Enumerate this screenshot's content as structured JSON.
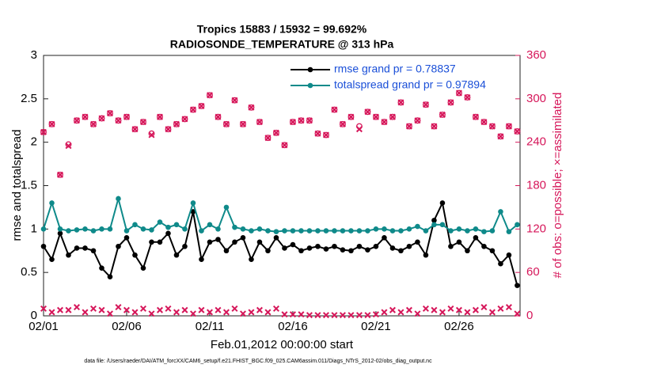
{
  "chart_data": {
    "type": "line",
    "title": "Tropics 15883 / 15932 = 99.692%",
    "subtitle": "RADIOSONDE_TEMPERATURE @ 313 hPa",
    "xlabel": "Feb.01,2012 00:00:00 start",
    "ylabel": "rmse and totalspread",
    "y2label": "# of obs: o=possible; ×=assimilated",
    "footnote": "data file: /Users/raeder/DAI/ATM_forcXX/CAM6_setup/f.e21.FHIST_BGC.f09_025.CAM6assim.011/Diags_NTrS_2012-02/obs_diag_output.nc",
    "x": [
      0,
      0.5,
      1,
      1.5,
      2,
      2.5,
      3,
      3.5,
      4,
      4.5,
      5,
      5.5,
      6,
      6.5,
      7,
      7.5,
      8,
      8.5,
      9,
      9.5,
      10,
      10.5,
      11,
      11.5,
      12,
      12.5,
      13,
      13.5,
      14,
      14.5,
      15,
      15.5,
      16,
      16.5,
      17,
      17.5,
      18,
      18.5,
      19,
      19.5,
      20,
      20.5,
      21,
      21.5,
      22,
      22.5,
      23,
      23.5,
      24,
      24.5,
      25,
      25.5,
      26,
      26.5,
      27,
      27.5,
      28,
      28.5
    ],
    "xlim": [
      0,
      28.67
    ],
    "xticks": [
      {
        "value": 0,
        "label": "02/01"
      },
      {
        "value": 5,
        "label": "02/06"
      },
      {
        "value": 10,
        "label": "02/11"
      },
      {
        "value": 15,
        "label": "02/16"
      },
      {
        "value": 20,
        "label": "02/21"
      },
      {
        "value": 25,
        "label": "02/26"
      }
    ],
    "ylim": [
      0,
      3
    ],
    "yticks": [
      0,
      0.5,
      1,
      1.5,
      2,
      2.5,
      3
    ],
    "y2lim": [
      0,
      360
    ],
    "y2ticks": [
      0,
      60,
      120,
      180,
      240,
      300,
      360
    ],
    "legend": "upper right",
    "series": [
      {
        "name": "rmse grand pr = 0.78837",
        "color": "#000000",
        "marker": "dot",
        "values": [
          0.8,
          0.65,
          0.95,
          0.7,
          0.78,
          0.78,
          0.75,
          0.55,
          0.45,
          0.8,
          0.9,
          0.7,
          0.55,
          0.85,
          0.85,
          0.95,
          0.7,
          0.8,
          1.2,
          0.65,
          0.85,
          0.88,
          0.75,
          0.85,
          0.9,
          0.65,
          0.85,
          0.75,
          0.9,
          0.78,
          0.82,
          0.75,
          0.78,
          0.8,
          0.77,
          0.8,
          0.76,
          0.75,
          0.8,
          0.76,
          0.8,
          0.9,
          0.78,
          0.75,
          0.8,
          0.85,
          0.7,
          1.1,
          1.3,
          0.8,
          0.85,
          0.75,
          0.9,
          0.8,
          0.75,
          0.6,
          0.7,
          0.35
        ]
      },
      {
        "name": "totalspread grand pr = 0.97894",
        "color": "#0f8a8a",
        "marker": "dot",
        "values": [
          1.0,
          1.3,
          1.0,
          0.98,
          0.99,
          1.0,
          0.98,
          1.0,
          1.0,
          1.35,
          0.98,
          1.05,
          1.0,
          0.99,
          1.08,
          1.02,
          1.05,
          1.0,
          1.3,
          0.98,
          1.05,
          1.0,
          1.25,
          1.02,
          1.0,
          0.98,
          1.0,
          0.98,
          0.97,
          0.98,
          0.98,
          0.98,
          0.98,
          0.98,
          0.98,
          0.98,
          0.98,
          0.98,
          0.98,
          0.98,
          1.0,
          1.0,
          0.98,
          0.98,
          1.0,
          1.03,
          0.98,
          1.05,
          1.05,
          0.98,
          1.0,
          0.98,
          1.0,
          0.97,
          0.98,
          1.2,
          0.97,
          1.05
        ]
      },
      {
        "axis": "y2",
        "color": "#d6175a",
        "marker": "circle",
        "values": [
          254,
          265,
          195,
          237,
          270,
          275,
          265,
          273,
          280,
          270,
          275,
          258,
          268,
          252,
          275,
          258,
          265,
          272,
          285,
          290,
          305,
          275,
          265,
          298,
          265,
          288,
          268,
          246,
          253,
          236,
          268,
          270,
          270,
          252,
          250,
          285,
          265,
          275,
          262,
          282,
          275,
          268,
          275,
          295,
          262,
          270,
          292,
          262,
          278,
          295,
          308,
          302,
          275,
          268,
          262,
          248,
          262,
          255
        ]
      },
      {
        "axis": "y2",
        "color": "#d6175a",
        "marker": "cross",
        "values": [
          254,
          265,
          195,
          235,
          270,
          275,
          265,
          273,
          280,
          270,
          275,
          258,
          268,
          250,
          275,
          258,
          265,
          272,
          285,
          290,
          305,
          275,
          265,
          298,
          265,
          288,
          268,
          246,
          253,
          236,
          268,
          270,
          270,
          252,
          250,
          285,
          265,
          275,
          258,
          282,
          275,
          268,
          275,
          295,
          262,
          270,
          292,
          262,
          278,
          295,
          308,
          302,
          275,
          268,
          262,
          248,
          262,
          255
        ]
      },
      {
        "axis": "y2",
        "color": "#d6175a",
        "marker": "cross",
        "values": [
          10,
          5,
          8,
          8,
          12,
          5,
          10,
          8,
          3,
          12,
          8,
          5,
          10,
          3,
          8,
          10,
          5,
          8,
          3,
          8,
          5,
          8,
          5,
          10,
          3,
          5,
          8,
          5,
          10,
          2,
          2,
          2,
          1,
          1,
          1,
          1,
          1,
          1,
          1,
          1,
          2,
          5,
          8,
          5,
          8,
          3,
          10,
          8,
          5,
          10,
          8,
          5,
          8,
          12,
          5,
          10,
          12,
          3
        ]
      }
    ]
  }
}
